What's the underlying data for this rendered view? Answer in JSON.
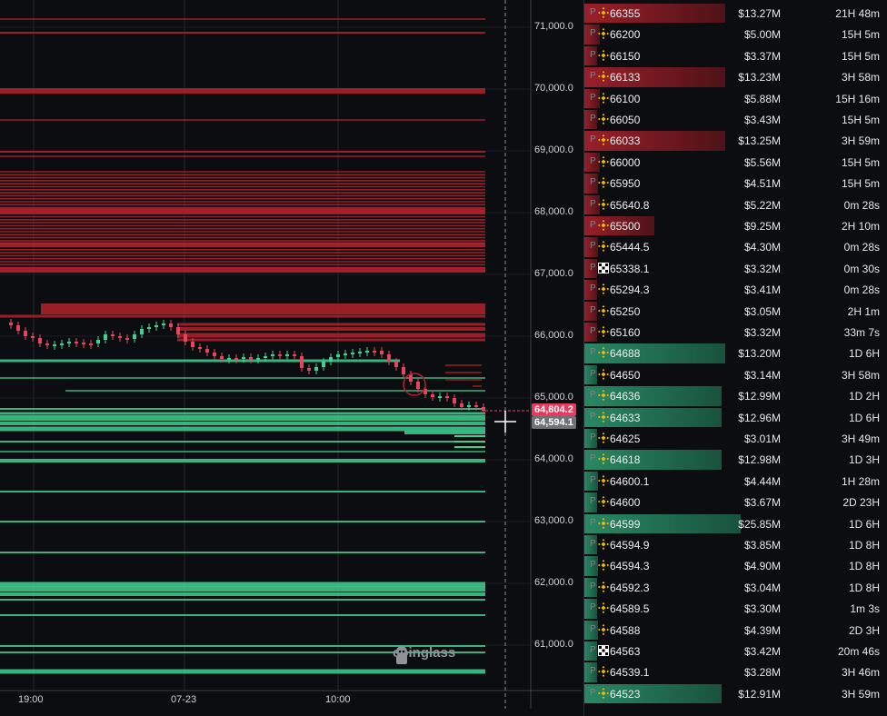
{
  "chart": {
    "price_axis": [
      "71,000.0",
      "70,000.0",
      "69,000.0",
      "68,000.0",
      "67,000.0",
      "66,000.0",
      "65,000.0",
      "64,000.0",
      "63,000.0",
      "62,000.0",
      "61,000.0"
    ],
    "time_axis": [
      "19:00",
      "07-23",
      "10:00"
    ],
    "current_price_tag": "64,804.2",
    "cursor_price_tag": "64,594.1",
    "watermark": "coinglass",
    "colors": {
      "ask": "#b3222d",
      "bid": "#3fd193",
      "tag_red": "#e83a5f",
      "tag_gray": "#6e7278"
    }
  },
  "orders": [
    {
      "side": "ask",
      "exchange": "binance",
      "price": "66355",
      "amount": "$13.27M",
      "duration": "21H 48m",
      "bar": 0.9
    },
    {
      "side": "ask",
      "exchange": "binance",
      "price": "66200",
      "amount": "$5.00M",
      "duration": "15H 5m",
      "bar": 0.1
    },
    {
      "side": "ask",
      "exchange": "binance",
      "price": "66150",
      "amount": "$3.37M",
      "duration": "15H 5m",
      "bar": 0.08
    },
    {
      "side": "ask",
      "exchange": "binance",
      "price": "66133",
      "amount": "$13.23M",
      "duration": "3H 58m",
      "bar": 0.9
    },
    {
      "side": "ask",
      "exchange": "binance",
      "price": "66100",
      "amount": "$5.88M",
      "duration": "15H 16m",
      "bar": 0.1
    },
    {
      "side": "ask",
      "exchange": "binance",
      "price": "66050",
      "amount": "$3.43M",
      "duration": "15H 5m",
      "bar": 0.08
    },
    {
      "side": "ask",
      "exchange": "binance",
      "price": "66033",
      "amount": "$13.25M",
      "duration": "3H 59m",
      "bar": 0.9
    },
    {
      "side": "ask",
      "exchange": "binance",
      "price": "66000",
      "amount": "$5.56M",
      "duration": "15H 5m",
      "bar": 0.1
    },
    {
      "side": "ask",
      "exchange": "binance",
      "price": "65950",
      "amount": "$4.51M",
      "duration": "15H 5m",
      "bar": 0.09
    },
    {
      "side": "ask",
      "exchange": "binance",
      "price": "65640.8",
      "amount": "$5.22M",
      "duration": "0m 28s",
      "bar": 0.1
    },
    {
      "side": "ask",
      "exchange": "binance",
      "price": "65500",
      "amount": "$9.25M",
      "duration": "2H 10m",
      "bar": 0.45
    },
    {
      "side": "ask",
      "exchange": "binance",
      "price": "65444.5",
      "amount": "$4.30M",
      "duration": "0m 28s",
      "bar": 0.09
    },
    {
      "side": "ask",
      "exchange": "okx",
      "price": "65338.1",
      "amount": "$3.32M",
      "duration": "0m 30s",
      "bar": 0.08
    },
    {
      "side": "ask",
      "exchange": "binance",
      "price": "65294.3",
      "amount": "$3.41M",
      "duration": "0m 28s",
      "bar": 0.08
    },
    {
      "side": "ask",
      "exchange": "binance",
      "price": "65250",
      "amount": "$3.05M",
      "duration": "2H 1m",
      "bar": 0.08
    },
    {
      "side": "ask",
      "exchange": "binance",
      "price": "65160",
      "amount": "$3.32M",
      "duration": "33m 7s",
      "bar": 0.08
    },
    {
      "side": "bid",
      "exchange": "binance",
      "price": "64688",
      "amount": "$13.20M",
      "duration": "1D 6H",
      "bar": 0.9
    },
    {
      "side": "bid",
      "exchange": "binance",
      "price": "64650",
      "amount": "$3.14M",
      "duration": "3H 58m",
      "bar": 0.08
    },
    {
      "side": "bid",
      "exchange": "binance",
      "price": "64636",
      "amount": "$12.99M",
      "duration": "1D 2H",
      "bar": 0.88
    },
    {
      "side": "bid",
      "exchange": "binance",
      "price": "64633",
      "amount": "$12.96M",
      "duration": "1D 6H",
      "bar": 0.88
    },
    {
      "side": "bid",
      "exchange": "binance",
      "price": "64625",
      "amount": "$3.01M",
      "duration": "3H 49m",
      "bar": 0.08
    },
    {
      "side": "bid",
      "exchange": "binance",
      "price": "64618",
      "amount": "$12.98M",
      "duration": "1D 3H",
      "bar": 0.88
    },
    {
      "side": "bid",
      "exchange": "binance",
      "price": "64600.1",
      "amount": "$4.44M",
      "duration": "1H 28m",
      "bar": 0.09
    },
    {
      "side": "bid",
      "exchange": "binance",
      "price": "64600",
      "amount": "$3.67M",
      "duration": "2D 23H",
      "bar": 0.08
    },
    {
      "side": "bid",
      "exchange": "binance",
      "price": "64599",
      "amount": "$25.85M",
      "duration": "1D 6H",
      "bar": 1.0
    },
    {
      "side": "bid",
      "exchange": "binance",
      "price": "64594.9",
      "amount": "$3.85M",
      "duration": "1D 8H",
      "bar": 0.08
    },
    {
      "side": "bid",
      "exchange": "binance",
      "price": "64594.3",
      "amount": "$4.90M",
      "duration": "1D 8H",
      "bar": 0.09
    },
    {
      "side": "bid",
      "exchange": "binance",
      "price": "64592.3",
      "amount": "$3.04M",
      "duration": "1D 8H",
      "bar": 0.08
    },
    {
      "side": "bid",
      "exchange": "binance",
      "price": "64589.5",
      "amount": "$3.30M",
      "duration": "1m 3s",
      "bar": 0.08
    },
    {
      "side": "bid",
      "exchange": "binance",
      "price": "64588",
      "amount": "$4.39M",
      "duration": "2D 3H",
      "bar": 0.09
    },
    {
      "side": "bid",
      "exchange": "okx",
      "price": "64563",
      "amount": "$3.42M",
      "duration": "20m 46s",
      "bar": 0.08
    },
    {
      "side": "bid",
      "exchange": "binance",
      "price": "64539.1",
      "amount": "$3.28M",
      "duration": "3H 46m",
      "bar": 0.08
    },
    {
      "side": "bid",
      "exchange": "binance",
      "price": "64523",
      "amount": "$12.91M",
      "duration": "3H 59m",
      "bar": 0.88
    }
  ]
}
